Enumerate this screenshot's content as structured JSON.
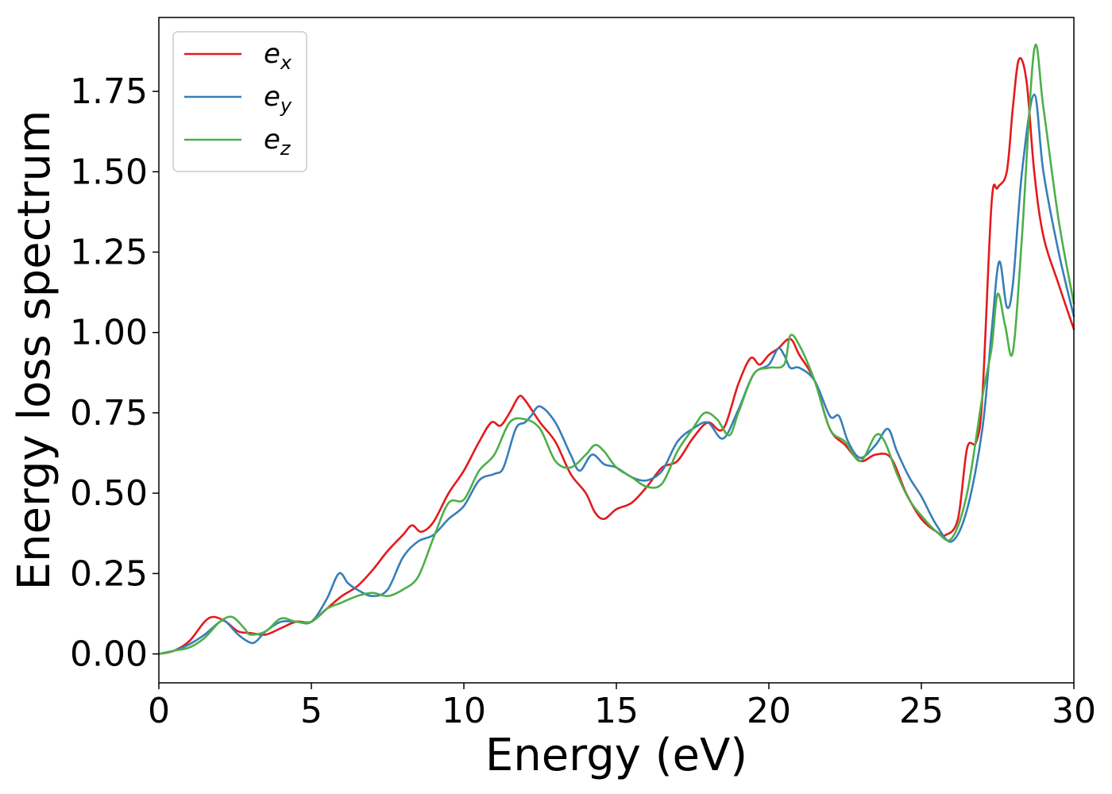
{
  "chart_data": {
    "type": "line",
    "title": "",
    "xlabel": "Energy (eV)",
    "ylabel": "Energy loss spectrum",
    "xlim": [
      0,
      30
    ],
    "ylim": [
      -0.09,
      1.98
    ],
    "xticks": [
      "0",
      "5",
      "10",
      "15",
      "20",
      "25",
      "30"
    ],
    "yticks": [
      "0.00",
      "0.25",
      "0.50",
      "0.75",
      "1.00",
      "1.25",
      "1.50",
      "1.75"
    ],
    "grid": false,
    "legend_position": "top-left",
    "series": [
      {
        "name": "e_x",
        "label_main": "e",
        "label_sub": "x",
        "color": "#e41a1c",
        "x": [
          0,
          0.5,
          1,
          1.5,
          1.8,
          2.2,
          2.6,
          3,
          3.5,
          4,
          4.5,
          5,
          5.5,
          6,
          6.5,
          7,
          7.5,
          8,
          8.3,
          8.6,
          9,
          9.5,
          10,
          10.5,
          10.9,
          11.2,
          11.5,
          11.8,
          12,
          12.5,
          13,
          13.5,
          14,
          14.3,
          14.6,
          15,
          15.5,
          16,
          16.5,
          17,
          17.5,
          18,
          18.5,
          19,
          19.4,
          19.7,
          20,
          20.3,
          20.7,
          21,
          21.5,
          22,
          22.5,
          23,
          23.5,
          24,
          24.5,
          25,
          25.5,
          25.8,
          26.2,
          26.5,
          26.8,
          27,
          27.3,
          27.5,
          27.8,
          28,
          28.2,
          28.45,
          28.7,
          29,
          29.5,
          30
        ],
        "y": [
          0.0,
          0.01,
          0.04,
          0.1,
          0.115,
          0.1,
          0.07,
          0.065,
          0.06,
          0.08,
          0.1,
          0.1,
          0.14,
          0.18,
          0.21,
          0.26,
          0.32,
          0.37,
          0.4,
          0.38,
          0.41,
          0.5,
          0.57,
          0.66,
          0.72,
          0.71,
          0.75,
          0.8,
          0.79,
          0.72,
          0.66,
          0.56,
          0.5,
          0.44,
          0.42,
          0.45,
          0.47,
          0.52,
          0.58,
          0.6,
          0.67,
          0.72,
          0.7,
          0.84,
          0.92,
          0.9,
          0.93,
          0.95,
          0.98,
          0.93,
          0.85,
          0.7,
          0.65,
          0.6,
          0.62,
          0.61,
          0.5,
          0.42,
          0.38,
          0.37,
          0.42,
          0.64,
          0.66,
          0.8,
          1.4,
          1.45,
          1.5,
          1.7,
          1.85,
          1.78,
          1.5,
          1.3,
          1.15,
          1.01
        ]
      },
      {
        "name": "e_y",
        "label_main": "e",
        "label_sub": "y",
        "color": "#377eb8",
        "x": [
          0,
          0.5,
          1,
          1.5,
          2,
          2.2,
          2.6,
          3,
          3.2,
          3.5,
          4,
          4.5,
          5,
          5.5,
          5.9,
          6.2,
          6.5,
          7,
          7.5,
          8,
          8.5,
          9,
          9.5,
          10,
          10.5,
          11,
          11.3,
          11.7,
          12,
          12.2,
          12.5,
          13,
          13.5,
          13.8,
          14.2,
          14.6,
          15,
          15.5,
          16,
          16.5,
          17,
          17.5,
          18,
          18.5,
          19,
          19.5,
          20,
          20.3,
          20.5,
          20.7,
          21,
          21.5,
          22,
          22.3,
          22.6,
          23,
          23.5,
          23.9,
          24.2,
          24.6,
          25,
          25.5,
          26,
          26.5,
          27,
          27.3,
          27.55,
          27.8,
          28,
          28.3,
          28.7,
          29,
          29.5,
          30
        ],
        "y": [
          0.0,
          0.01,
          0.03,
          0.06,
          0.1,
          0.1,
          0.06,
          0.035,
          0.04,
          0.07,
          0.1,
          0.1,
          0.1,
          0.17,
          0.25,
          0.22,
          0.2,
          0.18,
          0.2,
          0.3,
          0.35,
          0.37,
          0.42,
          0.46,
          0.54,
          0.56,
          0.58,
          0.7,
          0.72,
          0.74,
          0.77,
          0.72,
          0.62,
          0.57,
          0.62,
          0.59,
          0.58,
          0.55,
          0.54,
          0.57,
          0.66,
          0.7,
          0.72,
          0.67,
          0.76,
          0.87,
          0.9,
          0.95,
          0.93,
          0.89,
          0.89,
          0.85,
          0.74,
          0.74,
          0.66,
          0.61,
          0.65,
          0.7,
          0.63,
          0.55,
          0.49,
          0.4,
          0.35,
          0.45,
          0.7,
          1.0,
          1.22,
          1.08,
          1.15,
          1.5,
          1.74,
          1.5,
          1.25,
          1.05
        ]
      },
      {
        "name": "e_z",
        "label_main": "e",
        "label_sub": "z",
        "color": "#4daf4a",
        "x": [
          0,
          0.5,
          1,
          1.5,
          2,
          2.4,
          2.8,
          3,
          3.5,
          4,
          4.5,
          5,
          5.5,
          6,
          6.5,
          7,
          7.5,
          8,
          8.5,
          9,
          9.5,
          10,
          10.5,
          11,
          11.5,
          12,
          12.5,
          13,
          13.5,
          14,
          14.3,
          14.6,
          15,
          15.5,
          16,
          16.5,
          17,
          17.5,
          17.9,
          18.3,
          18.7,
          19,
          19.5,
          20,
          20.5,
          20.7,
          21,
          21.5,
          22,
          22.5,
          23,
          23.5,
          23.8,
          24.2,
          24.6,
          25,
          25.5,
          26,
          26.5,
          27,
          27.3,
          27.5,
          27.75,
          28,
          28.3,
          28.7,
          29,
          29.5,
          30
        ],
        "y": [
          0.0,
          0.01,
          0.02,
          0.05,
          0.1,
          0.115,
          0.08,
          0.06,
          0.07,
          0.11,
          0.1,
          0.1,
          0.14,
          0.16,
          0.18,
          0.19,
          0.18,
          0.2,
          0.24,
          0.36,
          0.47,
          0.48,
          0.57,
          0.62,
          0.72,
          0.73,
          0.7,
          0.6,
          0.58,
          0.62,
          0.65,
          0.63,
          0.58,
          0.55,
          0.52,
          0.53,
          0.63,
          0.7,
          0.75,
          0.73,
          0.68,
          0.75,
          0.87,
          0.89,
          0.9,
          0.99,
          0.96,
          0.85,
          0.7,
          0.66,
          0.6,
          0.68,
          0.66,
          0.56,
          0.48,
          0.43,
          0.38,
          0.36,
          0.5,
          0.8,
          0.95,
          1.12,
          1.02,
          0.94,
          1.3,
          1.88,
          1.7,
          1.35,
          1.09
        ]
      }
    ]
  }
}
